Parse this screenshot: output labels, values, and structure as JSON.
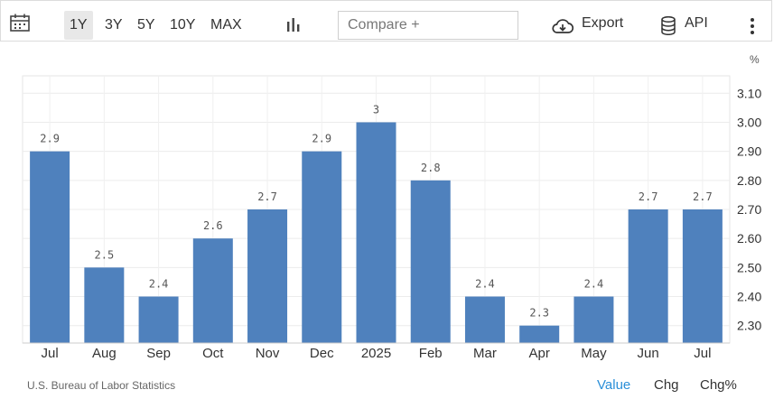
{
  "toolbar": {
    "ranges": [
      "1Y",
      "3Y",
      "5Y",
      "10Y",
      "MAX"
    ],
    "active_range": "1Y",
    "compare_placeholder": "Compare +",
    "export_label": "Export",
    "api_label": "API",
    "icons": [
      "calendar-icon",
      "bar-chart-icon",
      "cloud-download-icon",
      "database-icon",
      "more-vertical-icon"
    ]
  },
  "chart_data": {
    "type": "bar",
    "categories": [
      "Jul",
      "Aug",
      "Sep",
      "Oct",
      "Nov",
      "Dec",
      "2025",
      "Feb",
      "Mar",
      "Apr",
      "May",
      "Jun",
      "Jul"
    ],
    "values": [
      2.9,
      2.5,
      2.4,
      2.6,
      2.7,
      2.9,
      3,
      2.8,
      2.4,
      2.3,
      2.4,
      2.7,
      2.7
    ],
    "data_labels": [
      "2.9",
      "2.5",
      "2.4",
      "2.6",
      "2.7",
      "2.9",
      "3",
      "2.8",
      "2.4",
      "2.3",
      "2.4",
      "2.7",
      "2.7"
    ],
    "y_unit": "%",
    "y_ticks": [
      "2.30",
      "2.40",
      "2.50",
      "2.60",
      "2.70",
      "2.80",
      "2.90",
      "3.00",
      "3.10"
    ],
    "ylim": [
      2.24,
      3.16
    ],
    "y_axis_side": "right",
    "grid": true,
    "bar_color": "#4f81bd"
  },
  "footer": {
    "source": "U.S. Bureau of Labor Statistics",
    "value_label": "Value",
    "chg_label": "Chg",
    "chgp_label": "Chg%",
    "value_color": "#2a8fd8"
  }
}
